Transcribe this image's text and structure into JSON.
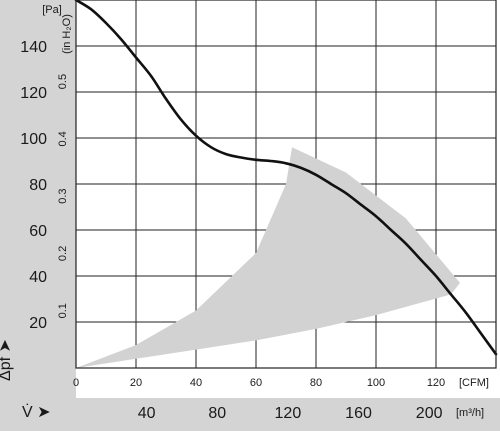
{
  "chart_data": {
    "type": "line",
    "title": "",
    "axes": {
      "pa": {
        "unit_label": "[Pa]",
        "ticks": [
          20,
          40,
          60,
          80,
          100,
          120,
          140
        ],
        "range": [
          0,
          160
        ]
      },
      "inh2o": {
        "unit_label": "(in H₂O)",
        "ticks": [
          0.1,
          0.2,
          0.3,
          0.4,
          0.5
        ],
        "pa_per_unit": 249.09
      },
      "cfm": {
        "unit_label": "[CFM]",
        "ticks": [
          0,
          20,
          40,
          60,
          80,
          100,
          120
        ],
        "range": [
          0,
          140
        ]
      },
      "m3h": {
        "unit_label": "[m³/h]",
        "ticks": [
          40,
          80,
          120,
          160,
          200
        ],
        "cfm_per_unit": 0.5886
      }
    },
    "axis_symbols": {
      "pressure": "Δpf ➤",
      "flow": "V̇ ➤"
    },
    "grid": true,
    "series": [
      {
        "x": [
          0,
          5,
          10,
          15,
          20,
          25,
          30,
          35,
          40,
          45,
          50,
          55,
          60,
          65,
          70,
          75,
          80,
          85,
          90,
          95,
          100,
          105,
          110,
          115,
          120,
          125,
          130,
          135,
          140
        ],
        "y": [
          160,
          156,
          150,
          143,
          135,
          127,
          117,
          108,
          101,
          96,
          93,
          91.5,
          90.5,
          90,
          89,
          87,
          84,
          80,
          76,
          71,
          66,
          60,
          54,
          47,
          40,
          32,
          24,
          15,
          6
        ],
        "color": "#111111"
      }
    ],
    "regions": [
      {
        "color": "#d2d2d2",
        "x": [
          0,
          20,
          40,
          60,
          70,
          72,
          90,
          110,
          128,
          125,
          100,
          80,
          60,
          40,
          20,
          0
        ],
        "y": [
          0,
          10,
          25,
          50,
          80,
          96,
          85,
          65,
          37,
          32,
          23,
          17,
          12,
          8,
          4,
          0
        ]
      }
    ]
  }
}
